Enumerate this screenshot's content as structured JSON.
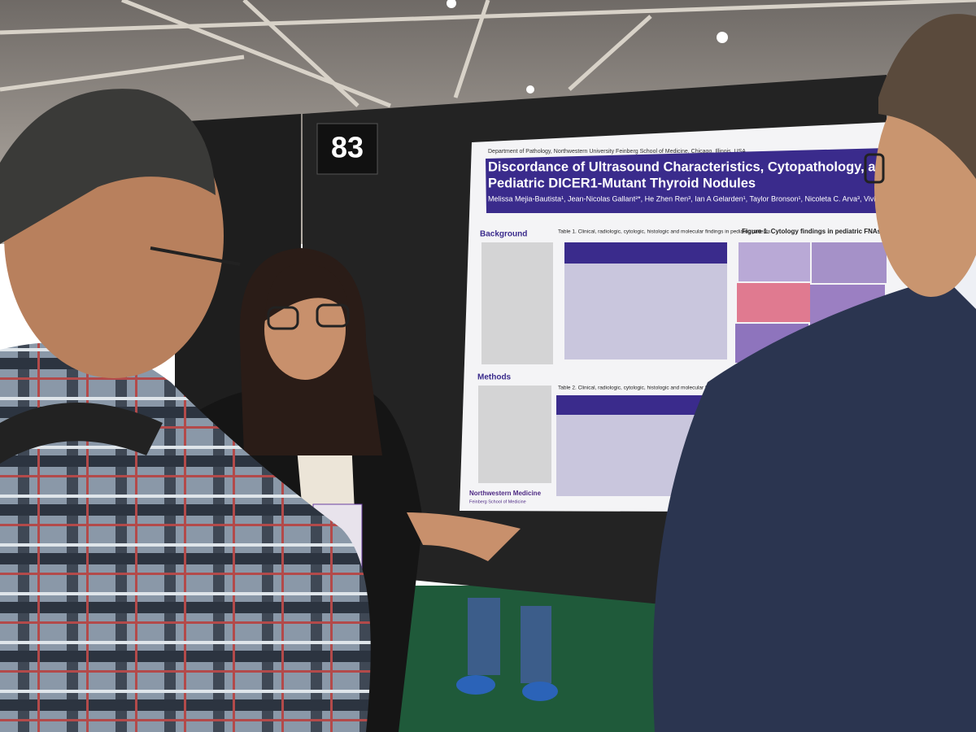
{
  "board_number": "83",
  "poster": {
    "affiliation": "Department of Pathology, Northwestern University Feinberg School of Medicine, Chicago, Illinois, USA",
    "title_line1": "Discordance of Ultrasound Characteristics, Cytopathology, and Hist",
    "title_line2": "Pediatric DICER1-Mutant Thyroid Nodules",
    "authors": "Melissa Mejia-Bautista¹, Jean-Nicolas Gallant²*, He Zhen Ren³, Ian A Gelarden¹, Taylor Bronson¹, Nicoleta C. Arva³, Vivian L",
    "sections": [
      "Background",
      "Methods"
    ],
    "table1_caption": "Table 1. Clinical, radiologic, cytologic, histologic and molecular findings in pediatric patients",
    "table2_caption": "Table 2. Clinical, radiologic, cytologic, histologic and molecular findings in adult patients",
    "figure1_caption": "Figure 1. Cytology findings in pediatric FNAs",
    "logo": "Northwestern Medicine",
    "logo_sub": "Feinberg School of Medicine"
  }
}
